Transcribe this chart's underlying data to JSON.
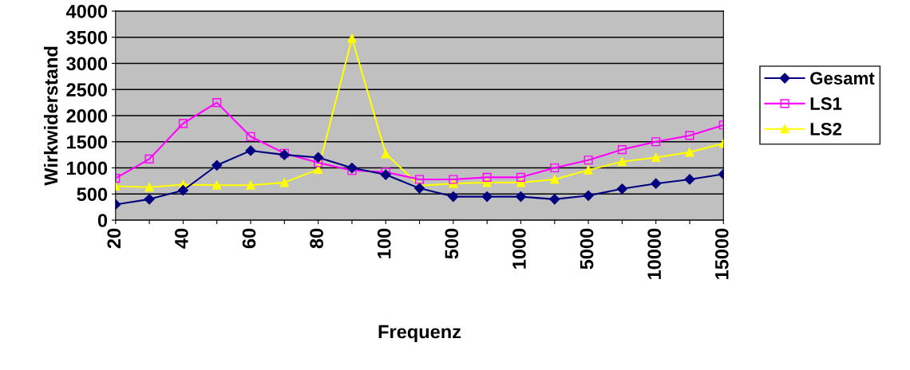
{
  "chart_data": {
    "type": "line",
    "xlabel": "Frequenz",
    "ylabel": "Wirkwiderstand",
    "categories": [
      "20",
      null,
      "40",
      null,
      "60",
      null,
      "80",
      null,
      "100",
      null,
      "500",
      null,
      "1000",
      null,
      "5000",
      null,
      "10000",
      null,
      "15000"
    ],
    "ylim": [
      0,
      4000
    ],
    "yticks": [
      0,
      500,
      1000,
      1500,
      2000,
      2500,
      3000,
      3500,
      4000
    ],
    "grid": "y",
    "legend": "right",
    "series": [
      {
        "name": "Gesamt",
        "color": "#000080",
        "marker": "diamond",
        "values": [
          300,
          400,
          570,
          1050,
          1330,
          1250,
          1200,
          1000,
          870,
          610,
          450,
          450,
          450,
          400,
          470,
          600,
          700,
          780,
          880
        ]
      },
      {
        "name": "LS1",
        "color": "#ff00ff",
        "marker": "square",
        "values": [
          800,
          1170,
          1850,
          2250,
          1600,
          1280,
          1100,
          950,
          920,
          780,
          780,
          820,
          820,
          1000,
          1150,
          1350,
          1500,
          1620,
          1820
        ]
      },
      {
        "name": "LS2",
        "color": "#ffff00",
        "marker": "triangle",
        "values": [
          650,
          630,
          680,
          670,
          670,
          720,
          970,
          3480,
          1270,
          660,
          700,
          720,
          720,
          780,
          960,
          1120,
          1200,
          1300,
          1470
        ]
      }
    ]
  }
}
